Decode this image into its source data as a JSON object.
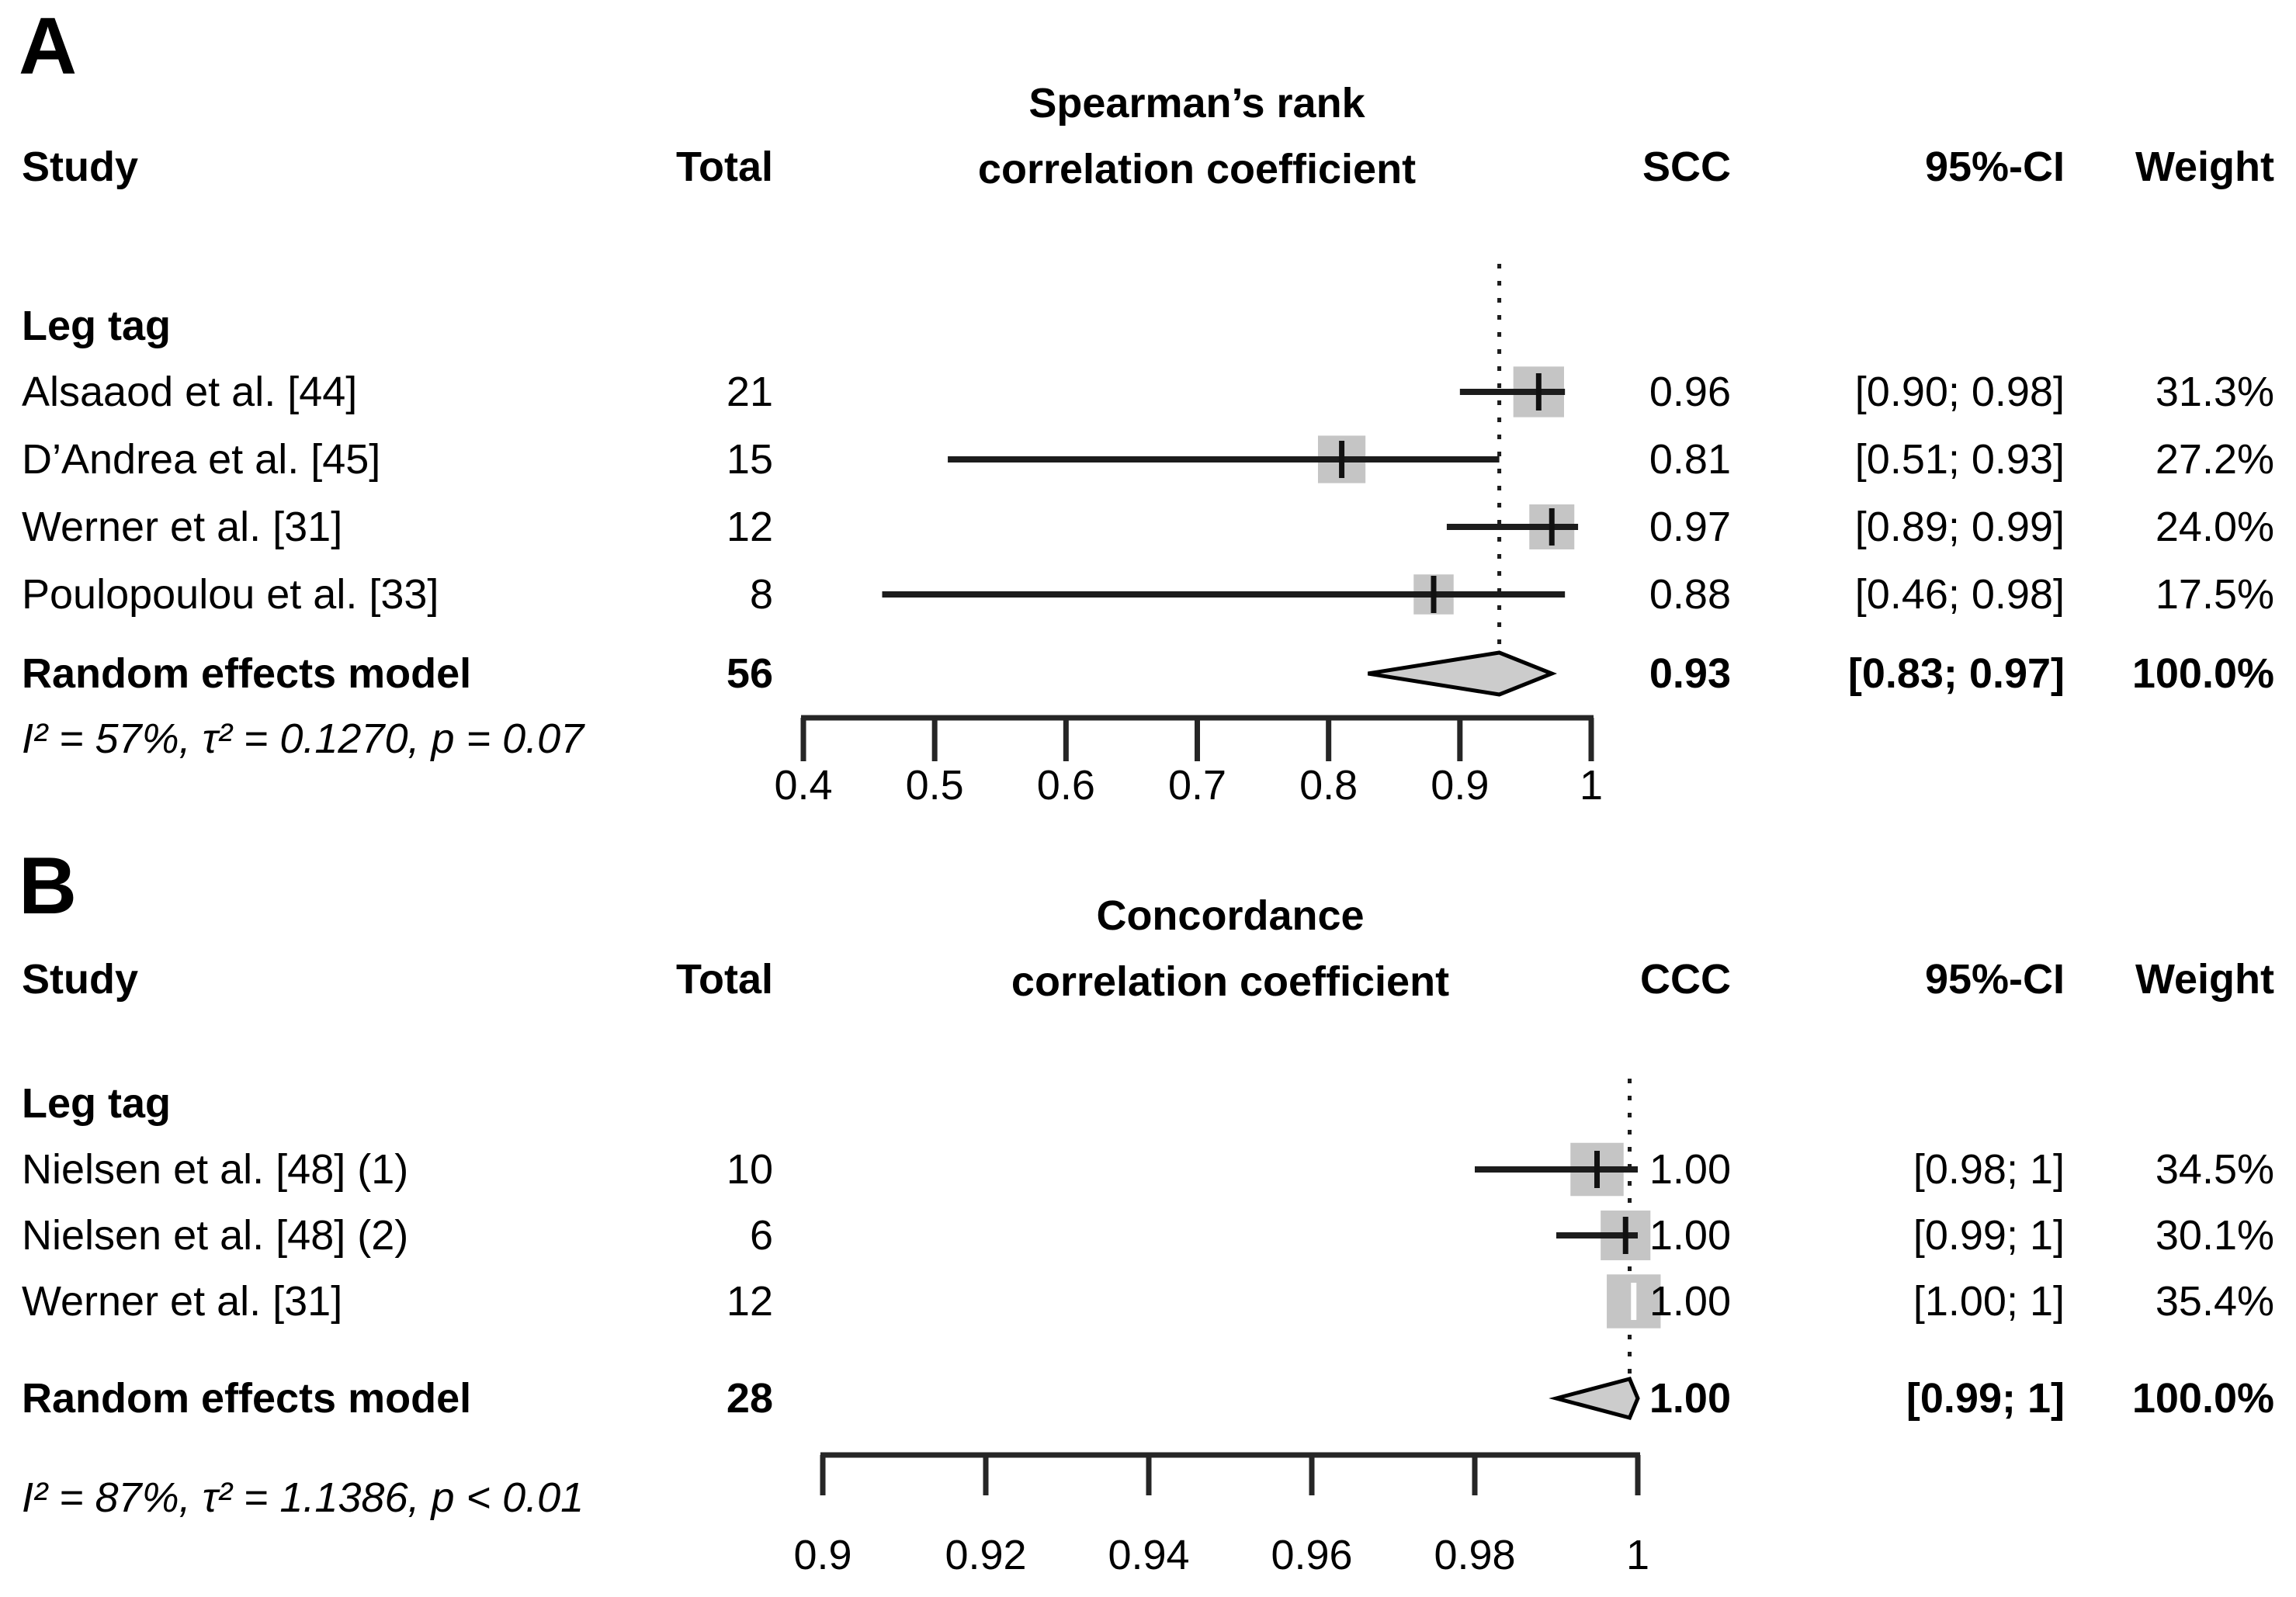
{
  "figure": {
    "panel_a_label": "A",
    "panel_b_label": "B"
  },
  "chart_data": [
    {
      "panel": "A",
      "type": "forest",
      "title_lines": [
        "Spearman’s rank",
        "correlation coefficient"
      ],
      "headers": {
        "study": "Study",
        "total": "Total",
        "effect": "SCC",
        "ci": "95%-CI",
        "weight": "Weight"
      },
      "subgroup_label": "Leg tag",
      "axis": {
        "min": 0.4,
        "max": 1.0,
        "ticks": [
          0.4,
          0.5,
          0.6,
          0.7,
          0.8,
          0.9,
          1.0
        ],
        "tick_labels": [
          "0.4",
          "0.5",
          "0.6",
          "0.7",
          "0.8",
          "0.9",
          "1"
        ]
      },
      "ref_line": 0.93,
      "studies": [
        {
          "name": "Alsaaod et al. [44]",
          "total": "21",
          "effect": "0.96",
          "ci_text": "[0.90; 0.98]",
          "weight": "31.3%",
          "est": 0.96,
          "lo": 0.9,
          "hi": 0.98,
          "plotted": 0.96,
          "weight_value": 31.3
        },
        {
          "name": "D’Andrea et al. [45]",
          "total": "15",
          "effect": "0.81",
          "ci_text": "[0.51; 0.93]",
          "weight": "27.2%",
          "est": 0.81,
          "lo": 0.51,
          "hi": 0.93,
          "plotted": 0.81,
          "weight_value": 27.2
        },
        {
          "name": "Werner et al. [31]",
          "total": "12",
          "effect": "0.97",
          "ci_text": "[0.89; 0.99]",
          "weight": "24.0%",
          "est": 0.97,
          "lo": 0.89,
          "hi": 0.99,
          "plotted": 0.97,
          "weight_value": 24.0
        },
        {
          "name": "Poulopoulou et al. [33]",
          "total": "8",
          "effect": "0.88",
          "ci_text": "[0.46; 0.98]",
          "weight": "17.5%",
          "est": 0.88,
          "lo": 0.46,
          "hi": 0.98,
          "plotted": 0.88,
          "weight_value": 17.5
        }
      ],
      "pooled": {
        "name": "Random effects model",
        "total": "56",
        "effect": "0.93",
        "ci_text": "[0.83; 0.97]",
        "weight": "100.0%",
        "est": 0.93,
        "lo": 0.83,
        "hi": 0.97,
        "plotted": 0.93
      },
      "heterogeneity": "I² = 57%, τ² = 0.1270, p = 0.07"
    },
    {
      "panel": "B",
      "type": "forest",
      "title_lines": [
        "Concordance",
        "correlation coefficient"
      ],
      "headers": {
        "study": "Study",
        "total": "Total",
        "effect": "CCC",
        "ci": "95%-CI",
        "weight": "Weight"
      },
      "subgroup_label": "Leg tag",
      "axis": {
        "min": 0.9,
        "max": 1.0,
        "ticks": [
          0.9,
          0.92,
          0.94,
          0.96,
          0.98,
          1.0
        ],
        "tick_labels": [
          "0.9",
          "0.92",
          "0.94",
          "0.96",
          "0.98",
          "1"
        ]
      },
      "ref_line": 0.999,
      "studies": [
        {
          "name": "Nielsen et al. [48] (1)",
          "total": "10",
          "effect": "1.00",
          "ci_text": "[0.98; 1]",
          "weight": "34.5%",
          "est": 1.0,
          "lo": 0.98,
          "hi": 1.0,
          "plotted": 0.995,
          "weight_value": 34.5
        },
        {
          "name": "Nielsen et al. [48] (2)",
          "total": "6",
          "effect": "1.00",
          "ci_text": "[0.99; 1]",
          "weight": "30.1%",
          "est": 1.0,
          "lo": 0.99,
          "hi": 1.0,
          "plotted": 0.9985,
          "weight_value": 30.1
        },
        {
          "name": "Werner et al. [31]",
          "total": "12",
          "effect": "1.00",
          "ci_text": "[1.00; 1]",
          "weight": "35.4%",
          "est": 1.0,
          "lo": 1.0,
          "hi": 1.0,
          "plotted": 0.9995,
          "weight_value": 35.4,
          "tick_light": true
        }
      ],
      "pooled": {
        "name": "Random effects model",
        "total": "28",
        "effect": "1.00",
        "ci_text": "[0.99; 1]",
        "weight": "100.0%",
        "est": 1.0,
        "lo": 0.99,
        "hi": 1.0,
        "plotted": 0.999
      },
      "heterogeneity": "I² = 87%, τ² = 1.1386, p < 0.01"
    }
  ]
}
